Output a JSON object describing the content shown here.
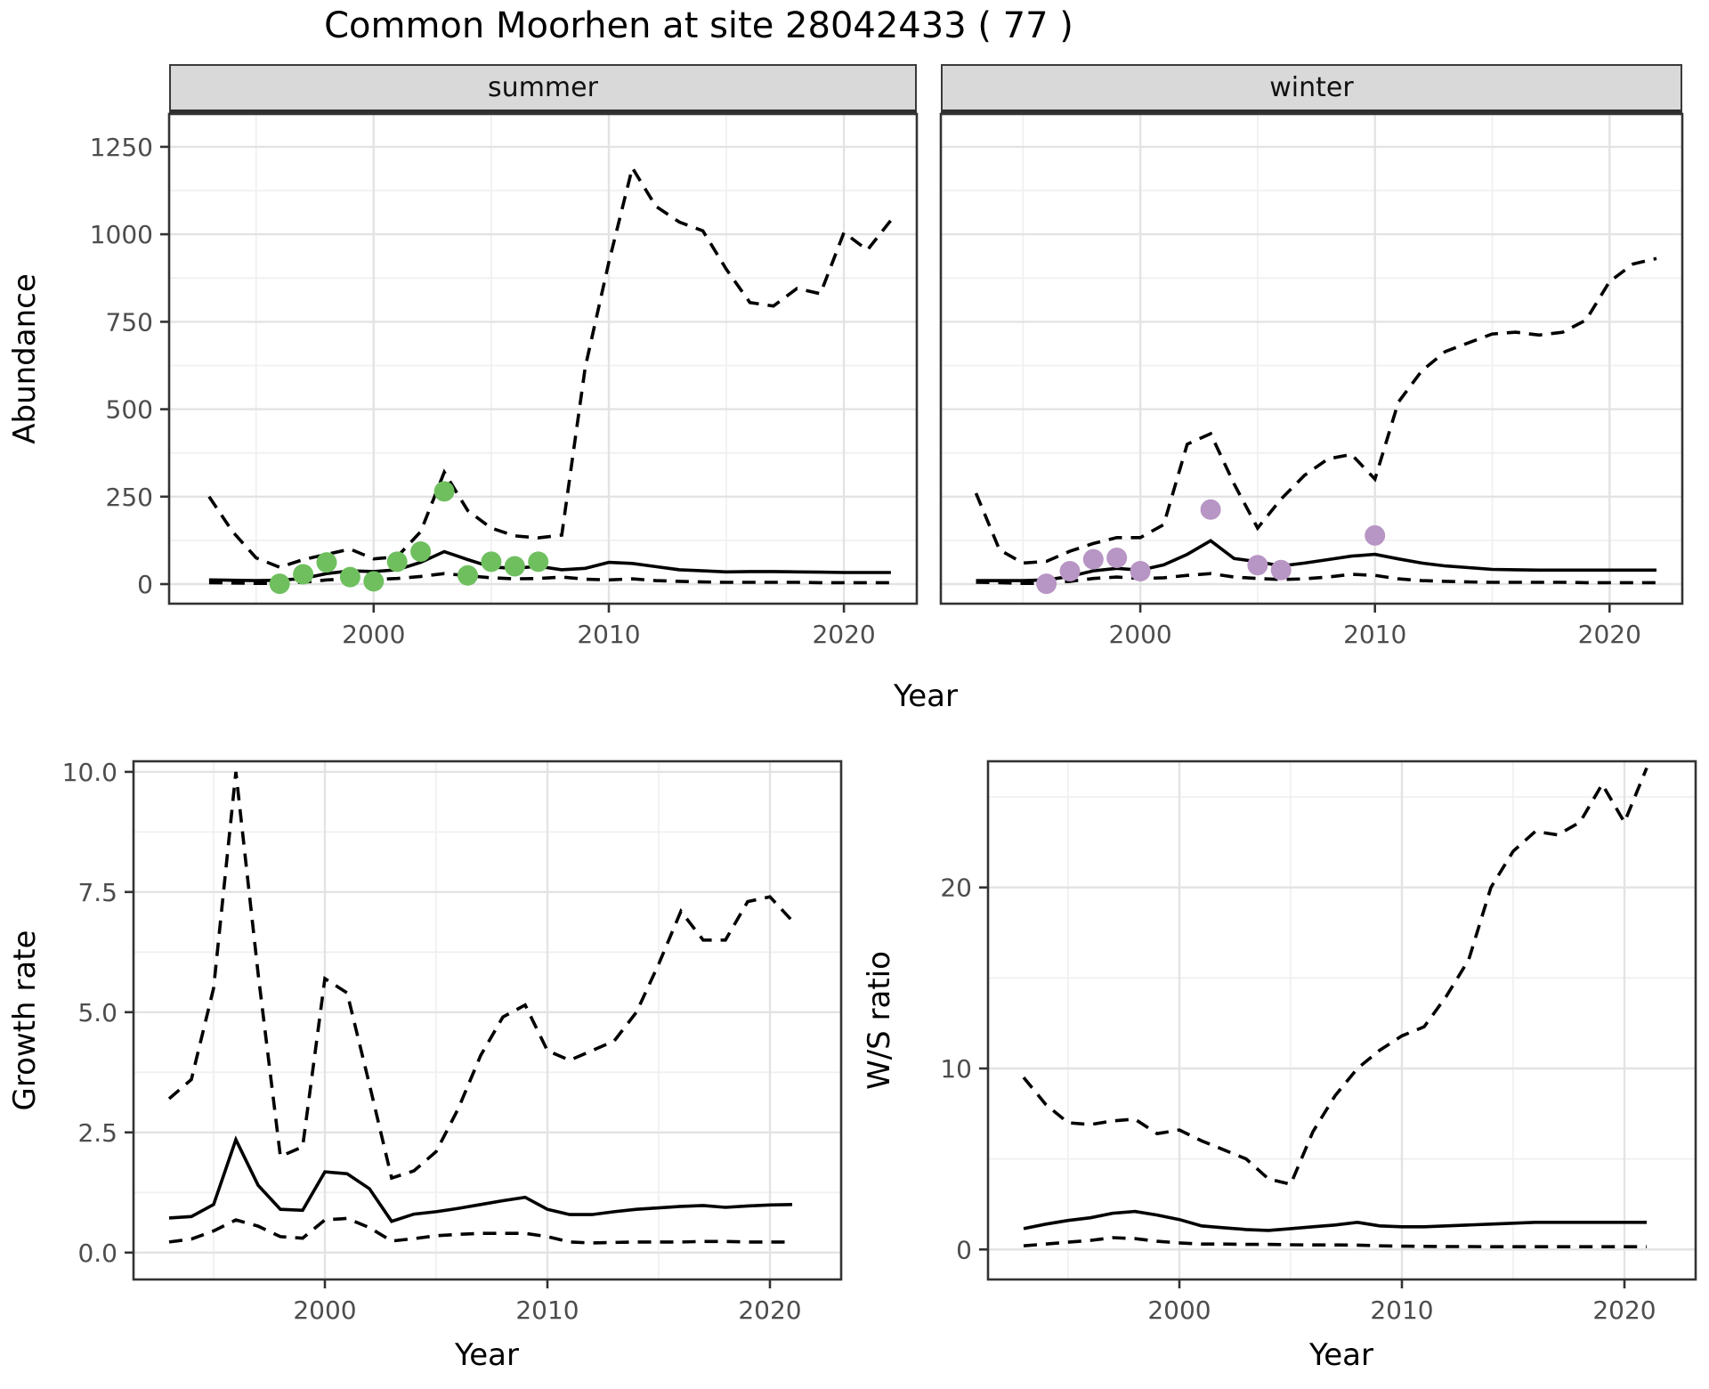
{
  "title": "Common Moorhen at site 28042433 ( 77 )",
  "facets": [
    "summer",
    "winter"
  ],
  "colors": {
    "summer_points": "#6fbf5f",
    "winter_points": "#b795c4",
    "line": "#000000",
    "strip_background": "#d9d9d9",
    "grid_major": "#e3e3e3",
    "grid_minor": "#f0f0f0"
  },
  "chart_data": [
    {
      "type": "line",
      "facet": "summer",
      "xlabel": "Year",
      "ylabel": "Abundance",
      "xlim": [
        1991.3,
        2023.1
      ],
      "ylim": [
        -56,
        1344
      ],
      "xticks": [
        2000,
        2010,
        2020
      ],
      "xtick_labels": [
        "2000",
        "2010",
        "2020"
      ],
      "xminor": [
        1995,
        2005,
        2015
      ],
      "yticks": [
        0,
        250,
        500,
        750,
        1000,
        1250
      ],
      "ytick_labels": [
        "0",
        "250",
        "500",
        "750",
        "1000",
        "1250"
      ],
      "yminor": [
        125,
        375,
        625,
        875,
        1125
      ],
      "grid": true,
      "legend": "none",
      "x": [
        1993,
        1994,
        1995,
        1996,
        1997,
        1998,
        1999,
        2000,
        2001,
        2002,
        2003,
        2004,
        2005,
        2006,
        2007,
        2008,
        2009,
        2010,
        2011,
        2012,
        2013,
        2014,
        2015,
        2016,
        2017,
        2018,
        2019,
        2020,
        2021,
        2022
      ],
      "series": [
        {
          "name": "upper_credible_interval",
          "style": "dashed",
          "values": [
            250,
            150,
            75,
            48,
            70,
            85,
            100,
            72,
            78,
            150,
            320,
            210,
            160,
            138,
            132,
            140,
            620,
            920,
            1190,
            1080,
            1035,
            1010,
            900,
            805,
            795,
            845,
            830,
            1005,
            955,
            1040
          ]
        },
        {
          "name": "median_estimate",
          "style": "solid",
          "values": [
            12,
            11,
            10,
            11,
            16,
            30,
            38,
            36,
            41,
            62,
            93,
            70,
            49,
            45,
            51,
            41,
            45,
            62,
            59,
            50,
            41,
            38,
            35,
            36,
            36,
            35,
            34,
            33,
            33,
            33
          ]
        },
        {
          "name": "lower_credible_interval",
          "style": "dashed",
          "values": [
            4,
            3,
            2,
            2,
            5,
            12,
            15,
            13,
            16,
            22,
            30,
            24,
            18,
            15,
            16,
            20,
            14,
            12,
            15,
            10,
            8,
            6,
            5,
            5,
            5,
            5,
            4,
            4,
            4,
            4
          ]
        }
      ],
      "points": {
        "name": "observed_counts_summer",
        "color": "#6fbf5f",
        "x": [
          1996,
          1997,
          1998,
          1999,
          2000,
          2001,
          2002,
          2003,
          2004,
          2005,
          2006,
          2007
        ],
        "y": [
          1,
          28,
          62,
          20,
          8,
          64,
          93,
          265,
          25,
          64,
          51,
          64
        ]
      }
    },
    {
      "type": "line",
      "facet": "winter",
      "xlabel": "Year",
      "ylabel": "Abundance",
      "xlim": [
        1991.5,
        2023.1
      ],
      "ylim": [
        -56,
        1344
      ],
      "xticks": [
        2000,
        2010,
        2020
      ],
      "xtick_labels": [
        "2000",
        "2010",
        "2020"
      ],
      "xminor": [
        1995,
        2005,
        2015
      ],
      "yticks": [
        0,
        250,
        500,
        750,
        1000,
        1250
      ],
      "ytick_labels": [],
      "yminor": [
        125,
        375,
        625,
        875,
        1125
      ],
      "grid": true,
      "legend": "none",
      "x": [
        1993,
        1994,
        1995,
        1996,
        1997,
        1998,
        1999,
        2000,
        2001,
        2002,
        2003,
        2004,
        2005,
        2006,
        2007,
        2008,
        2009,
        2010,
        2011,
        2012,
        2013,
        2014,
        2015,
        2016,
        2017,
        2018,
        2019,
        2020,
        2021,
        2022
      ],
      "series": [
        {
          "name": "upper_credible_interval",
          "style": "dashed",
          "values": [
            260,
            98,
            60,
            65,
            94,
            116,
            133,
            133,
            170,
            400,
            430,
            286,
            160,
            243,
            311,
            358,
            371,
            300,
            520,
            610,
            665,
            690,
            715,
            720,
            712,
            720,
            755,
            865,
            915,
            931
          ]
        },
        {
          "name": "median_estimate",
          "style": "solid",
          "values": [
            10,
            10,
            10,
            12,
            22,
            38,
            45,
            40,
            55,
            85,
            124,
            73,
            64,
            52,
            60,
            70,
            80,
            85,
            72,
            60,
            52,
            47,
            42,
            41,
            40,
            40,
            40,
            40,
            40,
            40
          ]
        },
        {
          "name": "lower_credible_interval",
          "style": "dashed",
          "values": [
            5,
            4,
            2,
            2,
            8,
            16,
            20,
            16,
            18,
            25,
            30,
            20,
            16,
            13,
            15,
            20,
            28,
            25,
            15,
            10,
            8,
            6,
            5,
            5,
            5,
            5,
            4,
            4,
            4,
            4
          ]
        }
      ],
      "points": {
        "name": "observed_counts_winter",
        "color": "#b795c4",
        "x": [
          1996,
          1997,
          1998,
          1999,
          2000,
          2003,
          2005,
          2006,
          2010
        ],
        "y": [
          1,
          37,
          71,
          75,
          37,
          213,
          54,
          40,
          139
        ]
      }
    },
    {
      "type": "line",
      "facet": null,
      "xlabel": "Year",
      "ylabel": "Growth rate",
      "xlim": [
        1991.4,
        2023.2
      ],
      "ylim": [
        -0.56,
        10.22
      ],
      "xticks": [
        2000,
        2010,
        2020
      ],
      "xtick_labels": [
        "2000",
        "2010",
        "2020"
      ],
      "xminor": [
        1995,
        2005,
        2015
      ],
      "yticks": [
        0,
        2.5,
        5,
        7.5,
        10
      ],
      "ytick_labels": [
        "0.0",
        "2.5",
        "5.0",
        "7.5",
        "10.0"
      ],
      "yminor": [
        1.25,
        3.75,
        6.25,
        8.75
      ],
      "grid": true,
      "legend": "none",
      "x": [
        1993,
        1994,
        1995,
        1996,
        1997,
        1998,
        1999,
        2000,
        2001,
        2002,
        2003,
        2004,
        2005,
        2006,
        2007,
        2008,
        2009,
        2010,
        2011,
        2012,
        2013,
        2014,
        2015,
        2016,
        2017,
        2018,
        2019,
        2020,
        2021
      ],
      "series": [
        {
          "name": "upper_credible_interval",
          "style": "dashed",
          "values": [
            3.2,
            3.6,
            5.5,
            10.0,
            5.8,
            2.0,
            2.2,
            5.7,
            5.4,
            3.5,
            1.55,
            1.7,
            2.1,
            3.0,
            4.1,
            4.9,
            5.15,
            4.2,
            4.0,
            4.2,
            4.4,
            5.0,
            6.0,
            7.1,
            6.5,
            6.5,
            7.3,
            7.4,
            6.9
          ]
        },
        {
          "name": "median_estimate",
          "style": "solid",
          "values": [
            0.72,
            0.75,
            1.0,
            2.35,
            1.4,
            0.9,
            0.88,
            1.68,
            1.64,
            1.33,
            0.65,
            0.8,
            0.85,
            0.92,
            1.0,
            1.08,
            1.15,
            0.9,
            0.79,
            0.79,
            0.85,
            0.9,
            0.93,
            0.96,
            0.98,
            0.94,
            0.97,
            0.99,
            1.0
          ]
        },
        {
          "name": "lower_credible_interval",
          "style": "dashed",
          "values": [
            0.22,
            0.28,
            0.45,
            0.68,
            0.55,
            0.33,
            0.3,
            0.68,
            0.71,
            0.52,
            0.24,
            0.29,
            0.35,
            0.38,
            0.4,
            0.4,
            0.4,
            0.33,
            0.22,
            0.2,
            0.21,
            0.22,
            0.22,
            0.22,
            0.23,
            0.23,
            0.22,
            0.22,
            0.22
          ]
        }
      ],
      "points": null
    },
    {
      "type": "line",
      "facet": null,
      "xlabel": "Year",
      "ylabel": "W/S ratio",
      "xlim": [
        1991.4,
        2023.2
      ],
      "ylim": [
        -1.66,
        26.97
      ],
      "xticks": [
        2000,
        2010,
        2020
      ],
      "xtick_labels": [
        "2000",
        "2010",
        "2020"
      ],
      "xminor": [
        1995,
        2005,
        2015
      ],
      "yticks": [
        0,
        10,
        20
      ],
      "ytick_labels": [
        "0",
        "10",
        "20"
      ],
      "yminor": [
        5,
        15,
        25
      ],
      "grid": true,
      "legend": "none",
      "x": [
        1993,
        1994,
        1995,
        1996,
        1997,
        1998,
        1999,
        2000,
        2001,
        2002,
        2003,
        2004,
        2005,
        2006,
        2007,
        2008,
        2009,
        2010,
        2011,
        2012,
        2013,
        2014,
        2015,
        2016,
        2017,
        2018,
        2019,
        2020,
        2021
      ],
      "series": [
        {
          "name": "upper_credible_interval",
          "style": "dashed",
          "values": [
            9.5,
            8.0,
            7.0,
            6.9,
            7.1,
            7.2,
            6.4,
            6.6,
            6.0,
            5.5,
            5.0,
            3.9,
            3.6,
            6.5,
            8.5,
            10.0,
            11.0,
            11.8,
            12.3,
            14.0,
            16.0,
            20.0,
            22.0,
            23.1,
            22.9,
            23.6,
            25.7,
            23.6,
            26.6
          ]
        },
        {
          "name": "median_estimate",
          "style": "solid",
          "values": [
            1.15,
            1.4,
            1.6,
            1.75,
            2.0,
            2.1,
            1.9,
            1.65,
            1.3,
            1.2,
            1.1,
            1.05,
            1.15,
            1.25,
            1.35,
            1.5,
            1.3,
            1.25,
            1.25,
            1.3,
            1.35,
            1.4,
            1.45,
            1.5,
            1.5,
            1.5,
            1.5,
            1.5,
            1.5
          ]
        },
        {
          "name": "lower_credible_interval",
          "style": "dashed",
          "values": [
            0.2,
            0.3,
            0.4,
            0.5,
            0.65,
            0.6,
            0.45,
            0.36,
            0.3,
            0.3,
            0.28,
            0.28,
            0.26,
            0.25,
            0.25,
            0.24,
            0.2,
            0.18,
            0.17,
            0.16,
            0.16,
            0.15,
            0.15,
            0.15,
            0.15,
            0.15,
            0.15,
            0.15,
            0.15
          ]
        }
      ],
      "points": null
    }
  ]
}
